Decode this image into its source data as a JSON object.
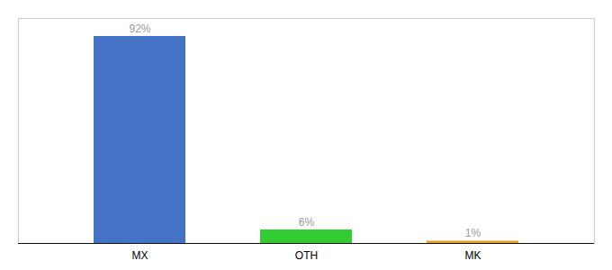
{
  "chart_data": {
    "type": "bar",
    "categories": [
      "MX",
      "OTH",
      "MK"
    ],
    "values": [
      92,
      6,
      1
    ],
    "value_labels": [
      "92%",
      "6%",
      "1%"
    ],
    "colors": [
      "#4472c4",
      "#33cc33",
      "#e8a020"
    ],
    "ylim": [
      0,
      100
    ],
    "data_labels": true,
    "grid": false,
    "tick_labels": "x"
  }
}
